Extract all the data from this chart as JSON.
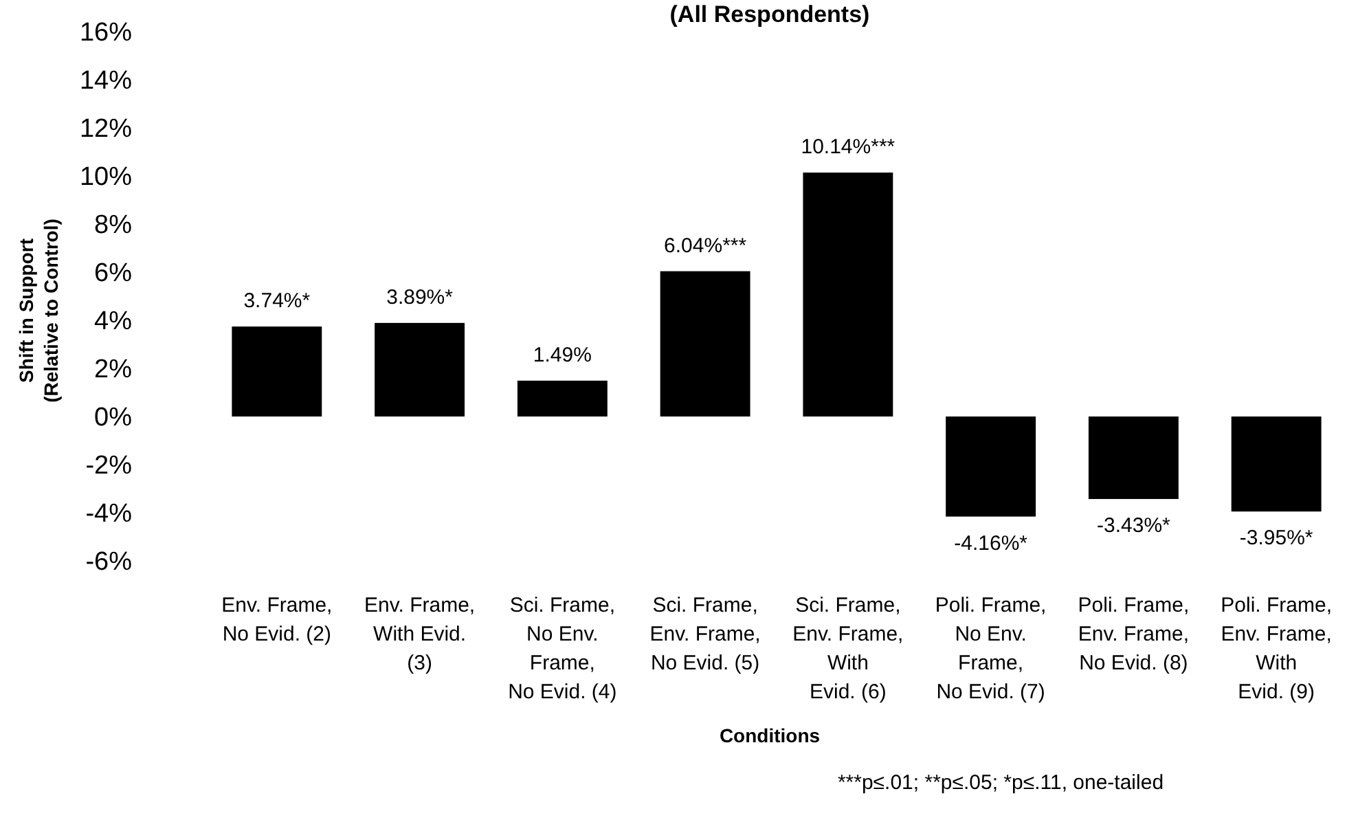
{
  "chart_data": {
    "type": "bar",
    "title": "(All Respondents)",
    "xlabel": "Conditions",
    "ylabel": "Shift in Support\n(Relative to Control)",
    "categories": [
      "Env. Frame,\nNo Evid. (2)",
      "Env. Frame,\nWith Evid.\n(3)",
      "Sci. Frame,\nNo Env.\nFrame,\nNo Evid. (4)",
      "Sci. Frame,\nEnv. Frame,\nNo Evid. (5)",
      "Sci. Frame,\nEnv. Frame,\nWith\nEvid. (6)",
      "Poli. Frame,\nNo Env.\nFrame,\nNo Evid. (7)",
      "Poli. Frame,\nEnv. Frame,\nNo Evid. (8)",
      "Poli. Frame,\nEnv. Frame,\nWith\nEvid. (9)"
    ],
    "values": [
      3.74,
      3.89,
      1.49,
      6.04,
      10.14,
      -4.16,
      -3.43,
      -3.95
    ],
    "value_labels": [
      "3.74%*",
      "3.89%*",
      "1.49%",
      "6.04%***",
      "10.14%***",
      "-4.16%*",
      "-3.43%*",
      "-3.95%*"
    ],
    "color": "#000000",
    "ylim": [
      -6,
      16
    ],
    "yticks": [
      {
        "value": -6,
        "label": "-6%"
      },
      {
        "value": -4,
        "label": "-4%"
      },
      {
        "value": -2,
        "label": "-2%"
      },
      {
        "value": 0,
        "label": "0%"
      },
      {
        "value": 2,
        "label": "2%"
      },
      {
        "value": 4,
        "label": "4%"
      },
      {
        "value": 6,
        "label": "6%"
      },
      {
        "value": 8,
        "label": "8%"
      },
      {
        "value": 10,
        "label": "10%"
      },
      {
        "value": 12,
        "label": "12%"
      },
      {
        "value": 14,
        "label": "14%"
      },
      {
        "value": 16,
        "label": "16%"
      }
    ],
    "grid": false,
    "annotations": [
      "***p≤.01; **p≤.05; *p≤.11, one-tailed"
    ]
  }
}
